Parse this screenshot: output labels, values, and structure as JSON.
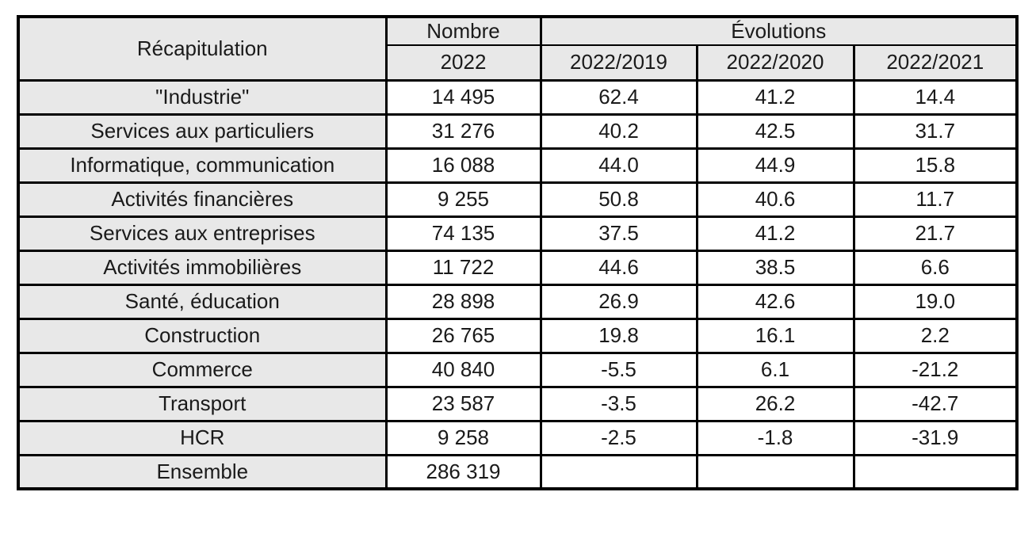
{
  "chart_data": {
    "type": "table",
    "header": {
      "recapitulation": "Récapitulation",
      "nombre": "Nombre",
      "nombre_year": "2022",
      "evolutions": "Évolutions",
      "evolution_cols": [
        "2022/2019",
        "2022/2020",
        "2022/2021"
      ]
    },
    "rows": [
      {
        "label": "\"Industrie\"",
        "nombre": "14 495",
        "evolutions": [
          "62.4",
          "41.2",
          "14.4"
        ],
        "color": "red"
      },
      {
        "label": "Services aux particuliers",
        "nombre": "31 276",
        "evolutions": [
          "40.2",
          "42.5",
          "31.7"
        ],
        "color": "red"
      },
      {
        "label": "Informatique, communication",
        "nombre": "16 088",
        "evolutions": [
          "44.0",
          "44.9",
          "15.8"
        ],
        "color": "red"
      },
      {
        "label": "Activités financières",
        "nombre": "9 255",
        "evolutions": [
          "50.8",
          "40.6",
          "11.7"
        ],
        "color": "red"
      },
      {
        "label": "Services aux entreprises",
        "nombre": "74 135",
        "evolutions": [
          "37.5",
          "41.2",
          "21.7"
        ],
        "color": "red"
      },
      {
        "label": "Activités immobilières",
        "nombre": "11 722",
        "evolutions": [
          "44.6",
          "38.5",
          "6.6"
        ],
        "color": "black"
      },
      {
        "label": "Santé, éducation",
        "nombre": "28 898",
        "evolutions": [
          "26.9",
          "42.6",
          "19.0"
        ],
        "color": "black"
      },
      {
        "label": "Construction",
        "nombre": "26 765",
        "evolutions": [
          "19.8",
          "16.1",
          "2.2"
        ],
        "color": "black"
      },
      {
        "label": "Commerce",
        "nombre": "40 840",
        "evolutions": [
          "-5.5",
          "6.1",
          "-21.2"
        ],
        "color": "blue"
      },
      {
        "label": "Transport",
        "nombre": "23 587",
        "evolutions": [
          "-3.5",
          "26.2",
          "-42.7"
        ],
        "color": "blue"
      },
      {
        "label": "HCR",
        "nombre": "9 258",
        "evolutions": [
          "-2.5",
          "-1.8",
          "-31.9"
        ],
        "color": "blue"
      },
      {
        "label": "Ensemble",
        "nombre": "286 319",
        "evolutions": [
          "",
          "",
          ""
        ],
        "color": "black"
      }
    ],
    "colors": {
      "increase_text": "#E53E2E",
      "decrease_text": "#4472C4",
      "neutral_text": "#1A1A1A",
      "shaded_cell_bg": "#E8E8E8",
      "border": "#000000"
    },
    "layout": {
      "grid": "on",
      "legend": "none"
    }
  }
}
